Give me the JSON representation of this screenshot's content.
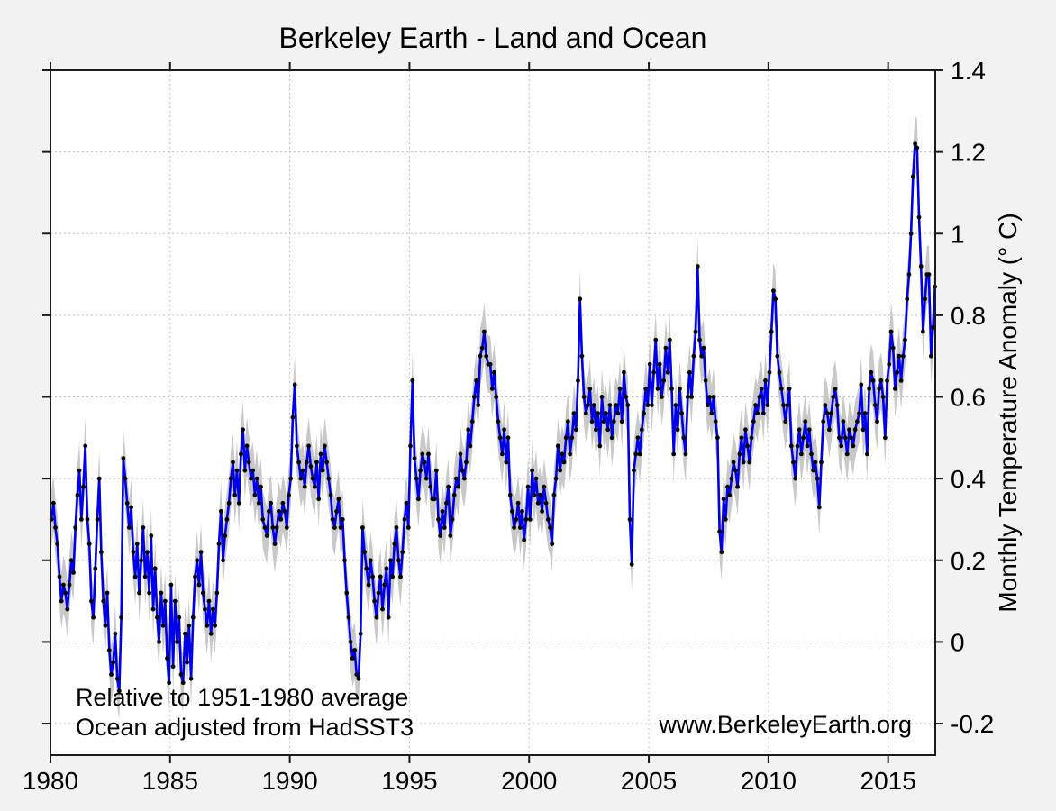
{
  "colors": {
    "background": "#f2f2f2",
    "plot_background": "#ffffff",
    "line": "#0000e8",
    "marker": "#000000",
    "band": "#c8c8c8",
    "grid": "#bdbdbd",
    "axis": "#1c1c1c"
  },
  "annotations": {
    "line1": "Relative to 1951-1980 average",
    "line2": "Ocean adjusted from HadSST3",
    "website": "www.BerkeleyEarth.org"
  },
  "chart_data": {
    "type": "line",
    "title": "Berkeley Earth - Land and Ocean",
    "xlabel": "",
    "ylabel": "Monthly Temperature Anomaly (° C)",
    "grid": true,
    "legend": "none",
    "xlim": [
      1980,
      2016.97
    ],
    "ylim": [
      -0.2772,
      1.4
    ],
    "x_ticks": [
      1980,
      1985,
      1990,
      1995,
      2000,
      2005,
      2010,
      2015
    ],
    "x_tick_labels": [
      "1980",
      "1985",
      "1990",
      "1995",
      "2000",
      "2005",
      "2010",
      "2015"
    ],
    "y_ticks": [
      -0.2,
      0,
      0.2,
      0.4,
      0.6,
      0.8,
      1,
      1.2,
      1.4
    ],
    "y_tick_labels": [
      "-0.2",
      "0",
      "0.2",
      "0.4",
      "0.6",
      "0.8",
      "1",
      "1.2",
      "1.4"
    ],
    "start_year": 1980,
    "points_per_year": 12,
    "uncertainty_band_halfwidth": 0.07,
    "series": [
      {
        "name": "Monthly temperature anomaly",
        "color": "#0000e8",
        "values": [
          0.3,
          0.34,
          0.28,
          0.24,
          0.16,
          0.1,
          0.14,
          0.12,
          0.08,
          0.14,
          0.2,
          0.17,
          0.28,
          0.36,
          0.42,
          0.3,
          0.38,
          0.48,
          0.3,
          0.24,
          0.1,
          0.06,
          0.18,
          0.3,
          0.4,
          0.22,
          0.1,
          0.04,
          0.12,
          -0.02,
          -0.08,
          -0.05,
          0.02,
          -0.09,
          -0.12,
          0.06,
          0.45,
          0.4,
          0.34,
          0.28,
          0.33,
          0.22,
          0.16,
          0.24,
          0.12,
          0.2,
          0.28,
          0.16,
          0.22,
          0.12,
          0.26,
          0.08,
          0.18,
          0.06,
          0.0,
          0.12,
          0.04,
          0.1,
          -0.04,
          -0.1,
          0.14,
          -0.06,
          0.1,
          0.0,
          0.06,
          -0.08,
          -0.1,
          0.02,
          -0.05,
          0.04,
          -0.09,
          0.06,
          0.16,
          0.2,
          0.14,
          0.22,
          0.12,
          0.08,
          0.04,
          0.1,
          0.02,
          0.08,
          0.04,
          0.12,
          0.24,
          0.32,
          0.2,
          0.26,
          0.3,
          0.34,
          0.4,
          0.44,
          0.36,
          0.42,
          0.34,
          0.46,
          0.52,
          0.42,
          0.48,
          0.44,
          0.4,
          0.42,
          0.36,
          0.4,
          0.34,
          0.38,
          0.3,
          0.28,
          0.26,
          0.32,
          0.34,
          0.28,
          0.24,
          0.28,
          0.32,
          0.3,
          0.34,
          0.32,
          0.28,
          0.36,
          0.4,
          0.55,
          0.63,
          0.48,
          0.44,
          0.4,
          0.42,
          0.38,
          0.44,
          0.48,
          0.43,
          0.4,
          0.38,
          0.44,
          0.35,
          0.46,
          0.42,
          0.48,
          0.44,
          0.4,
          0.36,
          0.3,
          0.28,
          0.32,
          0.35,
          0.28,
          0.3,
          0.2,
          0.12,
          0.06,
          0.0,
          -0.04,
          -0.02,
          -0.08,
          -0.09,
          0.02,
          0.28,
          0.22,
          0.18,
          0.14,
          0.2,
          0.16,
          0.1,
          0.06,
          0.12,
          0.16,
          0.08,
          0.14,
          0.18,
          0.06,
          0.2,
          0.16,
          0.24,
          0.28,
          0.2,
          0.16,
          0.22,
          0.3,
          0.34,
          0.28,
          0.48,
          0.64,
          0.45,
          0.4,
          0.35,
          0.42,
          0.46,
          0.44,
          0.4,
          0.46,
          0.38,
          0.35,
          0.35,
          0.42,
          0.3,
          0.26,
          0.32,
          0.28,
          0.34,
          0.38,
          0.26,
          0.3,
          0.36,
          0.4,
          0.38,
          0.46,
          0.42,
          0.4,
          0.44,
          0.52,
          0.48,
          0.54,
          0.6,
          0.64,
          0.58,
          0.7,
          0.72,
          0.76,
          0.7,
          0.68,
          0.68,
          0.62,
          0.66,
          0.6,
          0.54,
          0.5,
          0.46,
          0.52,
          0.44,
          0.5,
          0.36,
          0.32,
          0.28,
          0.3,
          0.34,
          0.28,
          0.32,
          0.25,
          0.3,
          0.38,
          0.3,
          0.42,
          0.36,
          0.4,
          0.34,
          0.36,
          0.32,
          0.38,
          0.34,
          0.3,
          0.28,
          0.24,
          0.36,
          0.4,
          0.48,
          0.42,
          0.46,
          0.44,
          0.5,
          0.54,
          0.46,
          0.5,
          0.56,
          0.52,
          0.64,
          0.84,
          0.7,
          0.6,
          0.56,
          0.58,
          0.62,
          0.54,
          0.58,
          0.52,
          0.56,
          0.48,
          0.6,
          0.54,
          0.56,
          0.52,
          0.58,
          0.5,
          0.54,
          0.58,
          0.56,
          0.62,
          0.54,
          0.66,
          0.6,
          0.58,
          0.3,
          0.19,
          0.42,
          0.46,
          0.5,
          0.46,
          0.52,
          0.56,
          0.62,
          0.58,
          0.68,
          0.58,
          0.66,
          0.74,
          0.62,
          0.68,
          0.6,
          0.64,
          0.72,
          0.66,
          0.74,
          0.62,
          0.46,
          0.58,
          0.52,
          0.62,
          0.56,
          0.5,
          0.46,
          0.6,
          0.66,
          0.6,
          0.7,
          0.76,
          0.92,
          0.74,
          0.7,
          0.72,
          0.64,
          0.58,
          0.6,
          0.56,
          0.6,
          0.54,
          0.5,
          0.27,
          0.22,
          0.35,
          0.3,
          0.38,
          0.36,
          0.4,
          0.44,
          0.42,
          0.38,
          0.46,
          0.5,
          0.44,
          0.52,
          0.48,
          0.44,
          0.5,
          0.54,
          0.58,
          0.56,
          0.6,
          0.62,
          0.56,
          0.64,
          0.58,
          0.66,
          0.76,
          0.86,
          0.84,
          0.7,
          0.66,
          0.62,
          0.58,
          0.54,
          0.58,
          0.62,
          0.48,
          0.44,
          0.4,
          0.48,
          0.52,
          0.46,
          0.5,
          0.54,
          0.48,
          0.52,
          0.46,
          0.42,
          0.44,
          0.4,
          0.33,
          0.44,
          0.54,
          0.58,
          0.56,
          0.52,
          0.56,
          0.6,
          0.62,
          0.58,
          0.5,
          0.48,
          0.54,
          0.5,
          0.46,
          0.52,
          0.5,
          0.48,
          0.52,
          0.54,
          0.56,
          0.63,
          0.52,
          0.56,
          0.46,
          0.62,
          0.66,
          0.64,
          0.58,
          0.54,
          0.62,
          0.64,
          0.6,
          0.5,
          0.64,
          0.68,
          0.76,
          0.72,
          0.62,
          0.66,
          0.7,
          0.64,
          0.7,
          0.74,
          0.84,
          0.9,
          1.0,
          1.14,
          1.22,
          1.21,
          1.04,
          0.92,
          0.76,
          0.84,
          0.9,
          0.9,
          0.7,
          0.77,
          0.87
        ]
      }
    ]
  }
}
